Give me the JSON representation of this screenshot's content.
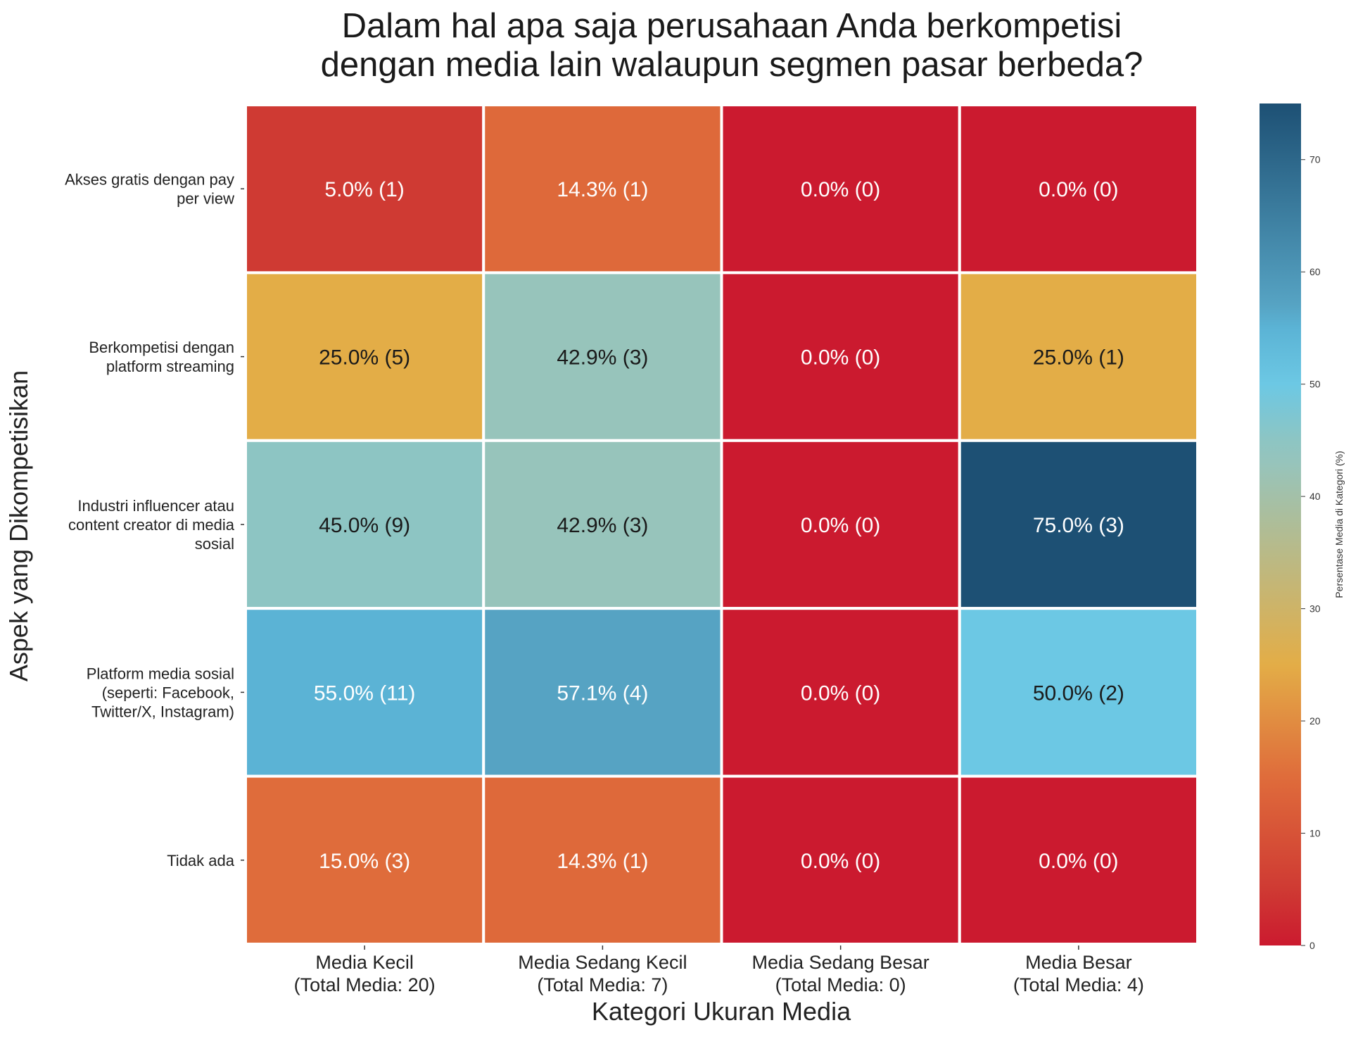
{
  "chart_data": {
    "type": "heatmap",
    "title": [
      "Dalam hal apa saja perusahaan Anda berkompetisi",
      "dengan media lain walaupun segmen pasar berbeda?"
    ],
    "xlabel": "Kategori Ukuran Media",
    "ylabel": "Aspek yang Dikompetisikan",
    "columns": [
      [
        "Media Kecil",
        "(Total Media: 20)"
      ],
      [
        "Media Sedang Kecil",
        "(Total Media: 7)"
      ],
      [
        "Media Sedang Besar",
        "(Total Media: 0)"
      ],
      [
        "Media Besar",
        "(Total Media: 4)"
      ]
    ],
    "rows": [
      [
        "Akses gratis dengan pay",
        "per view"
      ],
      [
        "Berkompetisi dengan",
        "platform streaming"
      ],
      [
        "Industri influencer atau",
        "content creator di media",
        "sosial"
      ],
      [
        "Platform media sosial",
        "(seperti: Facebook,",
        "Twitter/X, Instagram)"
      ],
      [
        "Tidak ada"
      ]
    ],
    "values": [
      [
        5.0,
        14.3,
        0.0,
        0.0
      ],
      [
        25.0,
        42.9,
        0.0,
        25.0
      ],
      [
        45.0,
        42.9,
        0.0,
        75.0
      ],
      [
        55.0,
        57.1,
        0.0,
        50.0
      ],
      [
        15.0,
        14.3,
        0.0,
        0.0
      ]
    ],
    "counts": [
      [
        1,
        1,
        0,
        0
      ],
      [
        5,
        3,
        0,
        1
      ],
      [
        9,
        3,
        0,
        3
      ],
      [
        11,
        4,
        0,
        2
      ],
      [
        3,
        1,
        0,
        0
      ]
    ],
    "colorbar": {
      "label": "Persentase Media di Kategori (%)",
      "range": [
        0,
        75
      ],
      "ticks": [
        0,
        10,
        20,
        30,
        40,
        50,
        60,
        70
      ],
      "colors": [
        {
          "v": 0,
          "c": "#cb1a2f"
        },
        {
          "v": 5,
          "c": "#cf3a33"
        },
        {
          "v": 15,
          "c": "#df6c3b"
        },
        {
          "v": 25,
          "c": "#e3ad47"
        },
        {
          "v": 42.9,
          "c": "#97c4bb"
        },
        {
          "v": 45,
          "c": "#8dc5c3"
        },
        {
          "v": 50,
          "c": "#6cc8e4"
        },
        {
          "v": 55,
          "c": "#5bb3d5"
        },
        {
          "v": 57.1,
          "c": "#56a3c3"
        },
        {
          "v": 75,
          "c": "#1d5074"
        }
      ]
    },
    "grid": false
  }
}
